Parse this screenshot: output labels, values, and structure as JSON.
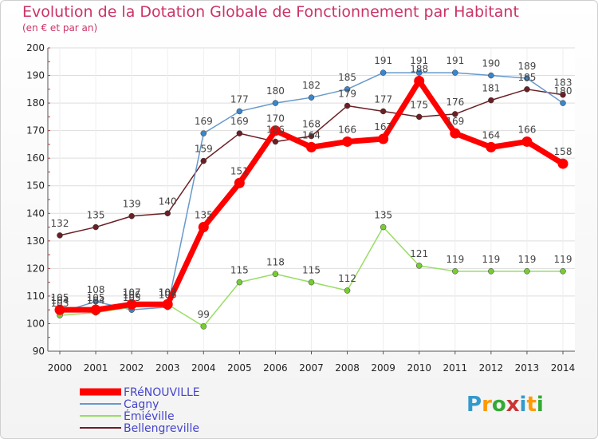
{
  "chart_data": {
    "type": "line",
    "title": "Evolution de la Dotation Globale de Fonctionnement par Habitant",
    "subtitle": "(en € et par an)",
    "x": [
      "2000",
      "2001",
      "2002",
      "2003",
      "2004",
      "2005",
      "2006",
      "2007",
      "2008",
      "2009",
      "2010",
      "2011",
      "2012",
      "2013",
      "2014"
    ],
    "ylim": [
      90,
      200
    ],
    "yticks": [
      90,
      100,
      110,
      120,
      130,
      140,
      150,
      160,
      170,
      180,
      190,
      200
    ],
    "grid": true,
    "legend_position": "bottom-left",
    "series": [
      {
        "name": "Bellengreville",
        "color": "#6b1f24",
        "dot": "#6b1f24",
        "values": [
          132,
          135,
          139,
          140,
          159,
          169,
          166,
          168,
          179,
          177,
          175,
          176,
          181,
          185,
          183
        ]
      },
      {
        "name": "Cagny",
        "color": "#6699cc",
        "dot": "#3a86cc",
        "values": [
          104,
          108,
          105,
          106,
          169,
          177,
          180,
          182,
          185,
          191,
          191,
          191,
          190,
          189,
          180
        ]
      },
      {
        "name": "Émiéville",
        "color": "#99dd66",
        "dot": "#77cc33",
        "values": [
          103,
          104,
          106,
          107,
          99,
          115,
          118,
          115,
          112,
          135,
          121,
          119,
          119,
          119,
          119
        ]
      },
      {
        "name": "FRéNOUVILLE",
        "color": "#ff0000",
        "dot": "#ff0000",
        "values": [
          105,
          105,
          107,
          107,
          135,
          151,
          170,
          164,
          166,
          167,
          188,
          169,
          164,
          166,
          158
        ]
      }
    ],
    "legend_order": [
      "FRéNOUVILLE",
      "Cagny",
      "Émiéville",
      "Bellengreville"
    ]
  },
  "logo": {
    "text": "Proxiti"
  }
}
